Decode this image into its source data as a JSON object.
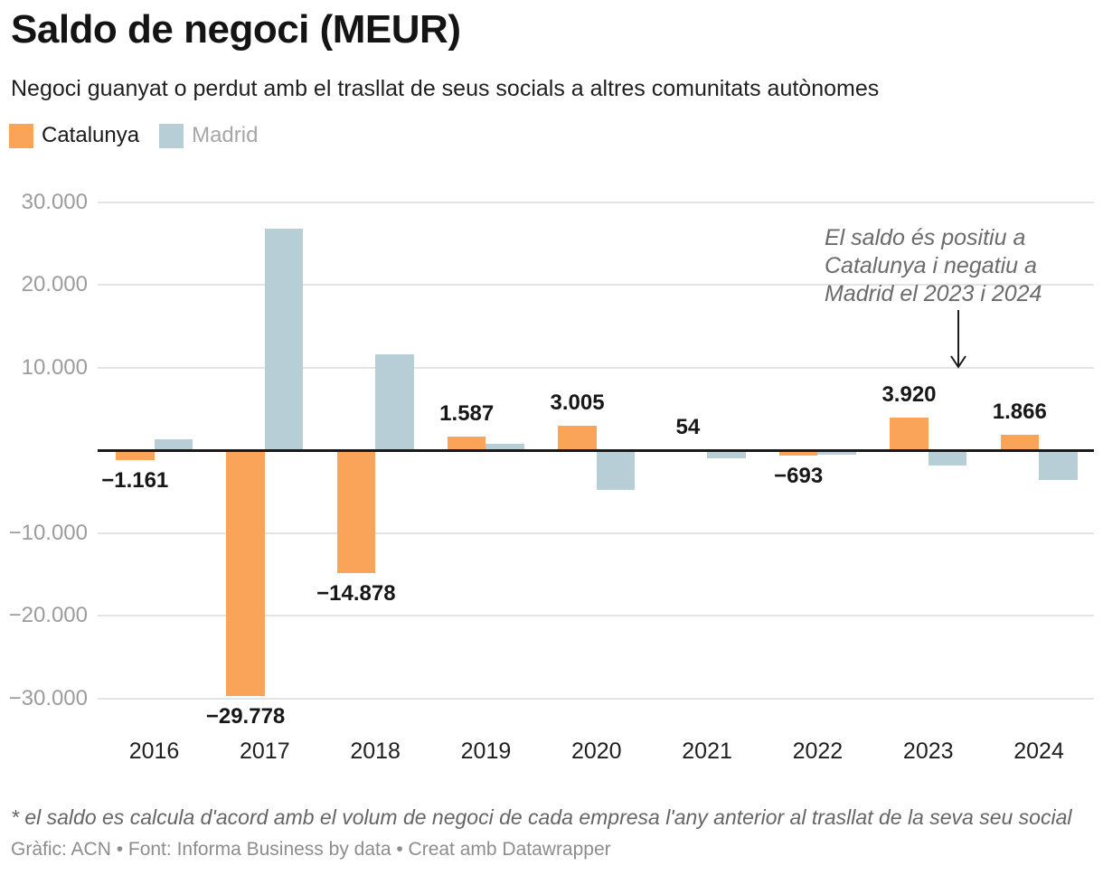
{
  "header": {
    "title": "Saldo de negoci (MEUR)",
    "subtitle": "Negoci guanyat o perdut amb el trasllat de seus socials a altres comunitats autònomes"
  },
  "legend": {
    "items": [
      {
        "label": "Catalunya",
        "color": "#FAA45A",
        "text_color": "#1a1a1a"
      },
      {
        "label": "Madrid",
        "color": "#B8CED7",
        "text_color": "#a6a6a6"
      }
    ]
  },
  "chart_data": {
    "type": "bar",
    "title": "Saldo de negoci (MEUR)",
    "categories": [
      "2016",
      "2017",
      "2018",
      "2019",
      "2020",
      "2021",
      "2022",
      "2023",
      "2024"
    ],
    "series": [
      {
        "name": "Catalunya",
        "color": "#FAA45A",
        "values": [
          -1161,
          -29778,
          -14878,
          1587,
          3005,
          54,
          -693,
          3920,
          1866
        ],
        "labels": [
          "−1.161",
          "−29.778",
          "−14.878",
          "1.587",
          "3.005",
          "54",
          "−693",
          "3.920",
          "1.866"
        ]
      },
      {
        "name": "Madrid",
        "color": "#B8CED7",
        "values": [
          1300,
          26800,
          11600,
          800,
          -4800,
          -1000,
          -500,
          -1900,
          -3600
        ]
      }
    ],
    "ylim": [
      -30000,
      30000
    ],
    "yticks": [
      {
        "value": 30000,
        "label": "30.000"
      },
      {
        "value": 20000,
        "label": "20.000"
      },
      {
        "value": 10000,
        "label": "10.000"
      },
      {
        "value": -10000,
        "label": "−10.000"
      },
      {
        "value": -20000,
        "label": "−20.000"
      },
      {
        "value": -30000,
        "label": "−30.000"
      }
    ],
    "grid": true,
    "legend_position": "top-left"
  },
  "annotation": {
    "text": "El saldo és positiu a\nCatalunya i negatiu a\nMadrid el 2023 i 2024"
  },
  "footer": {
    "footnote": "* el saldo es calcula d'acord amb el volum de negoci de cada empresa l'any anterior al trasllat de la seva seu social",
    "credits": "Gràfic: ACN • Font: Informa Business by data • Creat amb Datawrapper"
  }
}
